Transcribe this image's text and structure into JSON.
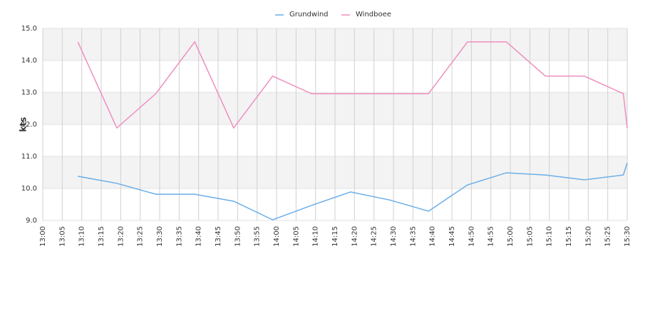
{
  "chart_data": {
    "type": "line",
    "y_label": "kts",
    "x": [
      789,
      799,
      809,
      819,
      829,
      839,
      849,
      859,
      869,
      879,
      889,
      899,
      909,
      919,
      929,
      930
    ],
    "series": [
      {
        "name": "Grundwind",
        "color": "#6aaee8",
        "values": [
          10.38,
          10.16,
          9.82,
          9.82,
          9.6,
          9.02,
          9.47,
          9.89,
          9.64,
          9.29,
          10.11,
          10.49,
          10.42,
          10.27,
          10.42,
          10.8
        ]
      },
      {
        "name": "Windboee",
        "color": "#ef8fbf",
        "values": [
          14.58,
          11.89,
          12.96,
          14.58,
          11.89,
          13.51,
          12.96,
          12.96,
          12.96,
          12.96,
          14.58,
          14.58,
          13.51,
          13.51,
          12.96,
          11.89
        ]
      }
    ],
    "xlim": [
      780,
      930
    ],
    "xticks": [
      {
        "value": 780,
        "label": "13:00"
      },
      {
        "value": 785,
        "label": "13:05"
      },
      {
        "value": 790,
        "label": "13:10"
      },
      {
        "value": 795,
        "label": "13:15"
      },
      {
        "value": 800,
        "label": "13:20"
      },
      {
        "value": 805,
        "label": "13:25"
      },
      {
        "value": 810,
        "label": "13:30"
      },
      {
        "value": 815,
        "label": "13:35"
      },
      {
        "value": 820,
        "label": "13:40"
      },
      {
        "value": 825,
        "label": "13:45"
      },
      {
        "value": 830,
        "label": "13:50"
      },
      {
        "value": 835,
        "label": "13:55"
      },
      {
        "value": 840,
        "label": "14:00"
      },
      {
        "value": 845,
        "label": "14:05"
      },
      {
        "value": 850,
        "label": "14:10"
      },
      {
        "value": 855,
        "label": "14:15"
      },
      {
        "value": 860,
        "label": "14:20"
      },
      {
        "value": 865,
        "label": "14:25"
      },
      {
        "value": 870,
        "label": "14:30"
      },
      {
        "value": 875,
        "label": "14:35"
      },
      {
        "value": 880,
        "label": "14:40"
      },
      {
        "value": 885,
        "label": "14:45"
      },
      {
        "value": 890,
        "label": "14:50"
      },
      {
        "value": 895,
        "label": "14:55"
      },
      {
        "value": 900,
        "label": "15:00"
      },
      {
        "value": 905,
        "label": "15:05"
      },
      {
        "value": 910,
        "label": "15:10"
      },
      {
        "value": 915,
        "label": "15:15"
      },
      {
        "value": 920,
        "label": "15:20"
      },
      {
        "value": 925,
        "label": "15:25"
      },
      {
        "value": 930,
        "label": "15:30"
      }
    ],
    "ylim": [
      9,
      15
    ],
    "yticks": [
      {
        "value": 9,
        "label": "9.0"
      },
      {
        "value": 10,
        "label": "10.0"
      },
      {
        "value": 11,
        "label": "11.0"
      },
      {
        "value": 12,
        "label": "12.0"
      },
      {
        "value": 13,
        "label": "13.0"
      },
      {
        "value": 14,
        "label": "14.0"
      },
      {
        "value": 15,
        "label": "15.0"
      }
    ],
    "grid": true
  }
}
